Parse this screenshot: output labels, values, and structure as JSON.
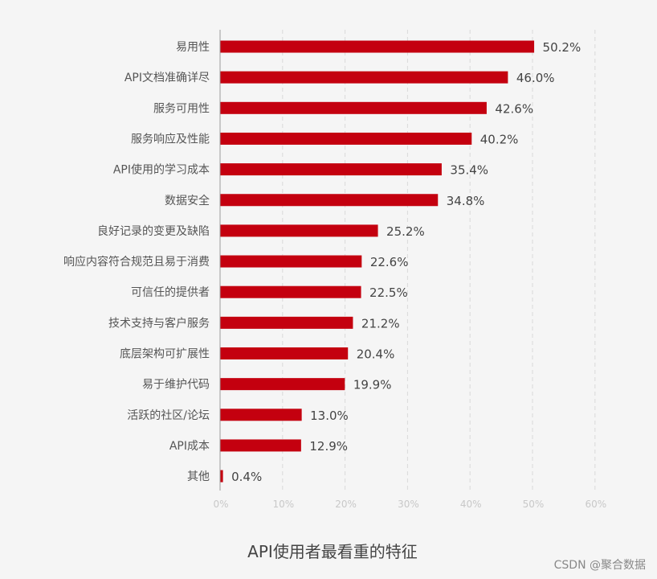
{
  "chart_data": {
    "type": "bar",
    "orientation": "horizontal",
    "title": "API使用者最看重的特征",
    "categories": [
      "易用性",
      "API文档准确详尽",
      "服务可用性",
      "服务响应及性能",
      "API使用的学习成本",
      "数据安全",
      "良好记录的变更及缺陷",
      "响应内容符合规范且易于消费",
      "可信任的提供者",
      "技术支持与客户服务",
      "底层架构可扩展性",
      "易于维护代码",
      "活跃的社区/论坛",
      "API成本",
      "其他"
    ],
    "values": [
      50.2,
      46.0,
      42.6,
      40.2,
      35.4,
      34.8,
      25.2,
      22.6,
      22.5,
      21.2,
      20.4,
      19.9,
      13.0,
      12.9,
      0.4
    ],
    "value_labels": [
      "50.2%",
      "46.0%",
      "42.6%",
      "40.2%",
      "35.4%",
      "34.8%",
      "25.2%",
      "22.6%",
      "22.5%",
      "21.2%",
      "20.4%",
      "19.9%",
      "13.0%",
      "12.9%",
      "0.4%"
    ],
    "xticks": [
      "0%",
      "10%",
      "20%",
      "30%",
      "40%",
      "50%",
      "60%"
    ],
    "xlim": [
      0,
      60
    ],
    "grid": "vertical-dashed",
    "bar_color": "#c4000f"
  },
  "watermark": "CSDN @聚合数据"
}
